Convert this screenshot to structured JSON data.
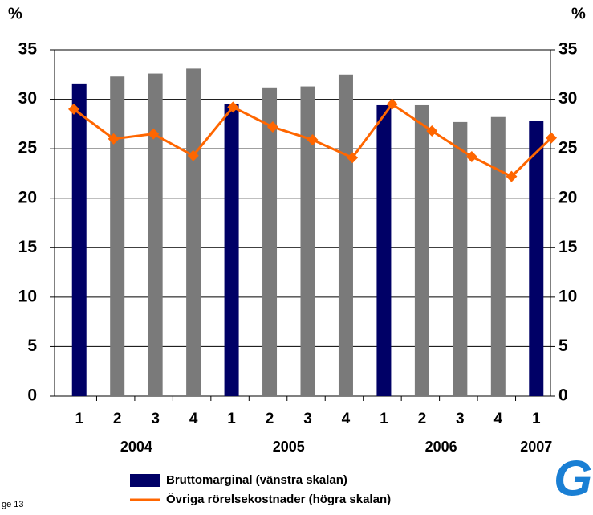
{
  "chart_data": {
    "type": "bar",
    "y_unit": "%",
    "y2_unit": "%",
    "categories": [
      "1",
      "2",
      "3",
      "4",
      "1",
      "2",
      "3",
      "4",
      "1",
      "2",
      "3",
      "4",
      "1"
    ],
    "group_labels": [
      "2004",
      null,
      null,
      null,
      "2005",
      null,
      null,
      null,
      "2006",
      null,
      null,
      null,
      "2007"
    ],
    "series": [
      {
        "name": "Bruttomarginal (vänstra skalan)",
        "color": "#000066",
        "colors": [
          "#000066",
          "#7a7a7a",
          "#7a7a7a",
          "#7a7a7a",
          "#000066",
          "#7a7a7a",
          "#7a7a7a",
          "#7a7a7a",
          "#000066",
          "#7a7a7a",
          "#7a7a7a",
          "#7a7a7a",
          "#000066"
        ],
        "values": [
          31.6,
          32.3,
          32.6,
          33.1,
          29.5,
          31.2,
          31.3,
          32.5,
          29.4,
          29.4,
          27.7,
          28.2,
          27.8
        ]
      },
      {
        "name": "Övriga rörelsekostnader (högra skalan)",
        "color": "#ff6600",
        "axis": "y2",
        "type": "line",
        "values": [
          29.0,
          26.0,
          26.5,
          24.3,
          29.2,
          27.2,
          25.9,
          24.1,
          29.5,
          26.8,
          24.2,
          22.2,
          26.1
        ]
      }
    ],
    "ylim": [
      0,
      35
    ],
    "yticks": [
      0,
      5,
      10,
      15,
      20,
      25,
      30,
      35
    ],
    "y2lim": [
      0,
      35
    ],
    "y2ticks": [
      0,
      5,
      10,
      15,
      20,
      25,
      30,
      35
    ],
    "grid": true
  },
  "footer": "ge 13",
  "logo": "G"
}
